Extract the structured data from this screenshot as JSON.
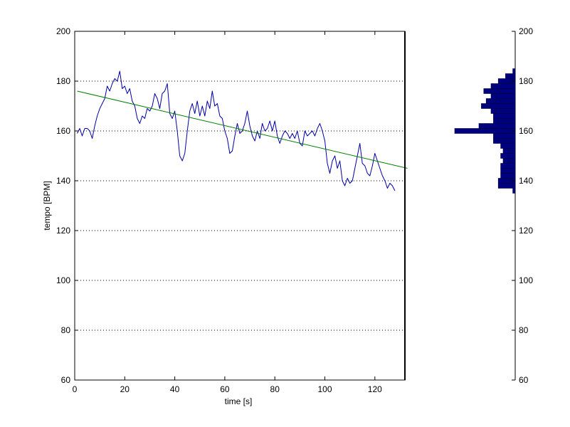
{
  "chart_data": [
    {
      "type": "line",
      "xlabel": "time [s]",
      "ylabel": "tempo [BPM]",
      "xlim": [
        0,
        132
      ],
      "ylim": [
        60,
        200
      ],
      "xticks": [
        0,
        20,
        40,
        60,
        80,
        100,
        120
      ],
      "yticks": [
        60,
        80,
        100,
        120,
        140,
        160,
        180,
        200
      ],
      "grid": "horizontal-dotted",
      "series": [
        {
          "color": "#0000aa",
          "points": [
            [
              1,
              159
            ],
            [
              2,
              161
            ],
            [
              3,
              158
            ],
            [
              4,
              161
            ],
            [
              5,
              161
            ],
            [
              6,
              160
            ],
            [
              7,
              157
            ],
            [
              8,
              162
            ],
            [
              9,
              166
            ],
            [
              10,
              169
            ],
            [
              11,
              171
            ],
            [
              12,
              173
            ],
            [
              13,
              178
            ],
            [
              14,
              176
            ],
            [
              15,
              179
            ],
            [
              16,
              181
            ],
            [
              17,
              180
            ],
            [
              18,
              184
            ],
            [
              19,
              177
            ],
            [
              20,
              178
            ],
            [
              21,
              175
            ],
            [
              22,
              177
            ],
            [
              23,
              172
            ],
            [
              24,
              170
            ],
            [
              25,
              165
            ],
            [
              26,
              163
            ],
            [
              27,
              166
            ],
            [
              28,
              165
            ],
            [
              29,
              169
            ],
            [
              30,
              168
            ],
            [
              31,
              170
            ],
            [
              32,
              175
            ],
            [
              33,
              173
            ],
            [
              34,
              169
            ],
            [
              35,
              175
            ],
            [
              36,
              176
            ],
            [
              37,
              179
            ],
            [
              38,
              167
            ],
            [
              39,
              165
            ],
            [
              40,
              168
            ],
            [
              41,
              160
            ],
            [
              42,
              150
            ],
            [
              43,
              148
            ],
            [
              44,
              151
            ],
            [
              45,
              160
            ],
            [
              46,
              168
            ],
            [
              47,
              171
            ],
            [
              48,
              167
            ],
            [
              49,
              172
            ],
            [
              50,
              166
            ],
            [
              51,
              170
            ],
            [
              52,
              166
            ],
            [
              53,
              172
            ],
            [
              54,
              169
            ],
            [
              55,
              176
            ],
            [
              56,
              170
            ],
            [
              57,
              171
            ],
            [
              58,
              166
            ],
            [
              59,
              165
            ],
            [
              60,
              160
            ],
            [
              61,
              157
            ],
            [
              62,
              151
            ],
            [
              63,
              152
            ],
            [
              64,
              158
            ],
            [
              65,
              163
            ],
            [
              66,
              159
            ],
            [
              67,
              160
            ],
            [
              68,
              163
            ],
            [
              69,
              168
            ],
            [
              70,
              162
            ],
            [
              71,
              158
            ],
            [
              72,
              156
            ],
            [
              73,
              160
            ],
            [
              74,
              157
            ],
            [
              75,
              163
            ],
            [
              76,
              160
            ],
            [
              77,
              161
            ],
            [
              78,
              164
            ],
            [
              79,
              160
            ],
            [
              80,
              164
            ],
            [
              81,
              158
            ],
            [
              82,
              155
            ],
            [
              83,
              158
            ],
            [
              84,
              160
            ],
            [
              85,
              159
            ],
            [
              86,
              157
            ],
            [
              87,
              159
            ],
            [
              88,
              157
            ],
            [
              89,
              160
            ],
            [
              90,
              155
            ],
            [
              91,
              154
            ],
            [
              92,
              160
            ],
            [
              93,
              158
            ],
            [
              94,
              159
            ],
            [
              95,
              160
            ],
            [
              96,
              158
            ],
            [
              97,
              161
            ],
            [
              98,
              163
            ],
            [
              99,
              160
            ],
            [
              100,
              156
            ],
            [
              101,
              147
            ],
            [
              102,
              143
            ],
            [
              103,
              148
            ],
            [
              104,
              150
            ],
            [
              105,
              145
            ],
            [
              106,
              148
            ],
            [
              107,
              140
            ],
            [
              108,
              138
            ],
            [
              109,
              141
            ],
            [
              110,
              139
            ],
            [
              111,
              140
            ],
            [
              112,
              145
            ],
            [
              113,
              150
            ],
            [
              114,
              155
            ],
            [
              115,
              147
            ],
            [
              116,
              146
            ],
            [
              117,
              143
            ],
            [
              118,
              142
            ],
            [
              119,
              146
            ],
            [
              120,
              151
            ],
            [
              121,
              148
            ],
            [
              122,
              145
            ],
            [
              123,
              142
            ],
            [
              124,
              140
            ],
            [
              125,
              137
            ],
            [
              126,
              139
            ],
            [
              127,
              138
            ],
            [
              128,
              136
            ]
          ]
        },
        {
          "color": "#008000",
          "points": [
            [
              1,
              176
            ],
            [
              133,
              145
            ]
          ]
        }
      ]
    },
    {
      "type": "bar",
      "orientation": "horizontal",
      "ylim": [
        60,
        200
      ],
      "yticks": [
        60,
        80,
        100,
        120,
        140,
        160,
        180,
        200
      ],
      "bin_edges": [
        135,
        137,
        139,
        141,
        143,
        145,
        147,
        149,
        151,
        153,
        155,
        157,
        159,
        161,
        163,
        165,
        167,
        169,
        171,
        173,
        175,
        177,
        179,
        181,
        183,
        185
      ],
      "counts": [
        1,
        7,
        7,
        6,
        6,
        6,
        5,
        6,
        5,
        6,
        9,
        9,
        25,
        15,
        9,
        9,
        10,
        14,
        12,
        10,
        13,
        10,
        7,
        4,
        1
      ],
      "color": "#00007f"
    }
  ]
}
